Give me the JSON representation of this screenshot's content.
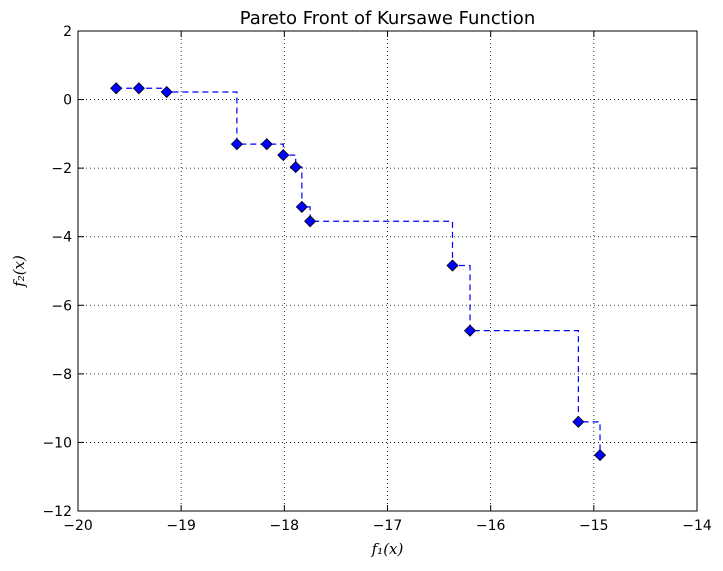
{
  "chart_data": {
    "type": "scatter",
    "title": "Pareto Front of Kursawe Function",
    "xlabel": "f₁(x)",
    "ylabel": "f₂(x)",
    "xlim": [
      -20,
      -14
    ],
    "ylim": [
      -12,
      2
    ],
    "xticks": [
      -20,
      -19,
      -18,
      -17,
      -16,
      -15,
      -14
    ],
    "yticks": [
      2,
      0,
      -2,
      -4,
      -6,
      -8,
      -10,
      -12
    ],
    "xtick_labels": [
      "−20",
      "−19",
      "−18",
      "−17",
      "−16",
      "−15",
      "−14"
    ],
    "ytick_labels": [
      "2",
      "0",
      "−2",
      "−4",
      "−6",
      "−8",
      "−10",
      "−12"
    ],
    "grid": true,
    "marker": "diamond",
    "color": "#0000ff",
    "step_line": "dashed",
    "points": [
      {
        "x": -19.63,
        "y": 0.33
      },
      {
        "x": -19.41,
        "y": 0.33
      },
      {
        "x": -19.14,
        "y": 0.22
      },
      {
        "x": -18.46,
        "y": -1.3
      },
      {
        "x": -18.17,
        "y": -1.3
      },
      {
        "x": -18.01,
        "y": -1.62
      },
      {
        "x": -17.89,
        "y": -1.97
      },
      {
        "x": -17.83,
        "y": -3.13
      },
      {
        "x": -17.75,
        "y": -3.55
      },
      {
        "x": -16.37,
        "y": -4.84
      },
      {
        "x": -16.2,
        "y": -6.74
      },
      {
        "x": -15.15,
        "y": -9.4
      },
      {
        "x": -14.94,
        "y": -10.37
      }
    ]
  }
}
